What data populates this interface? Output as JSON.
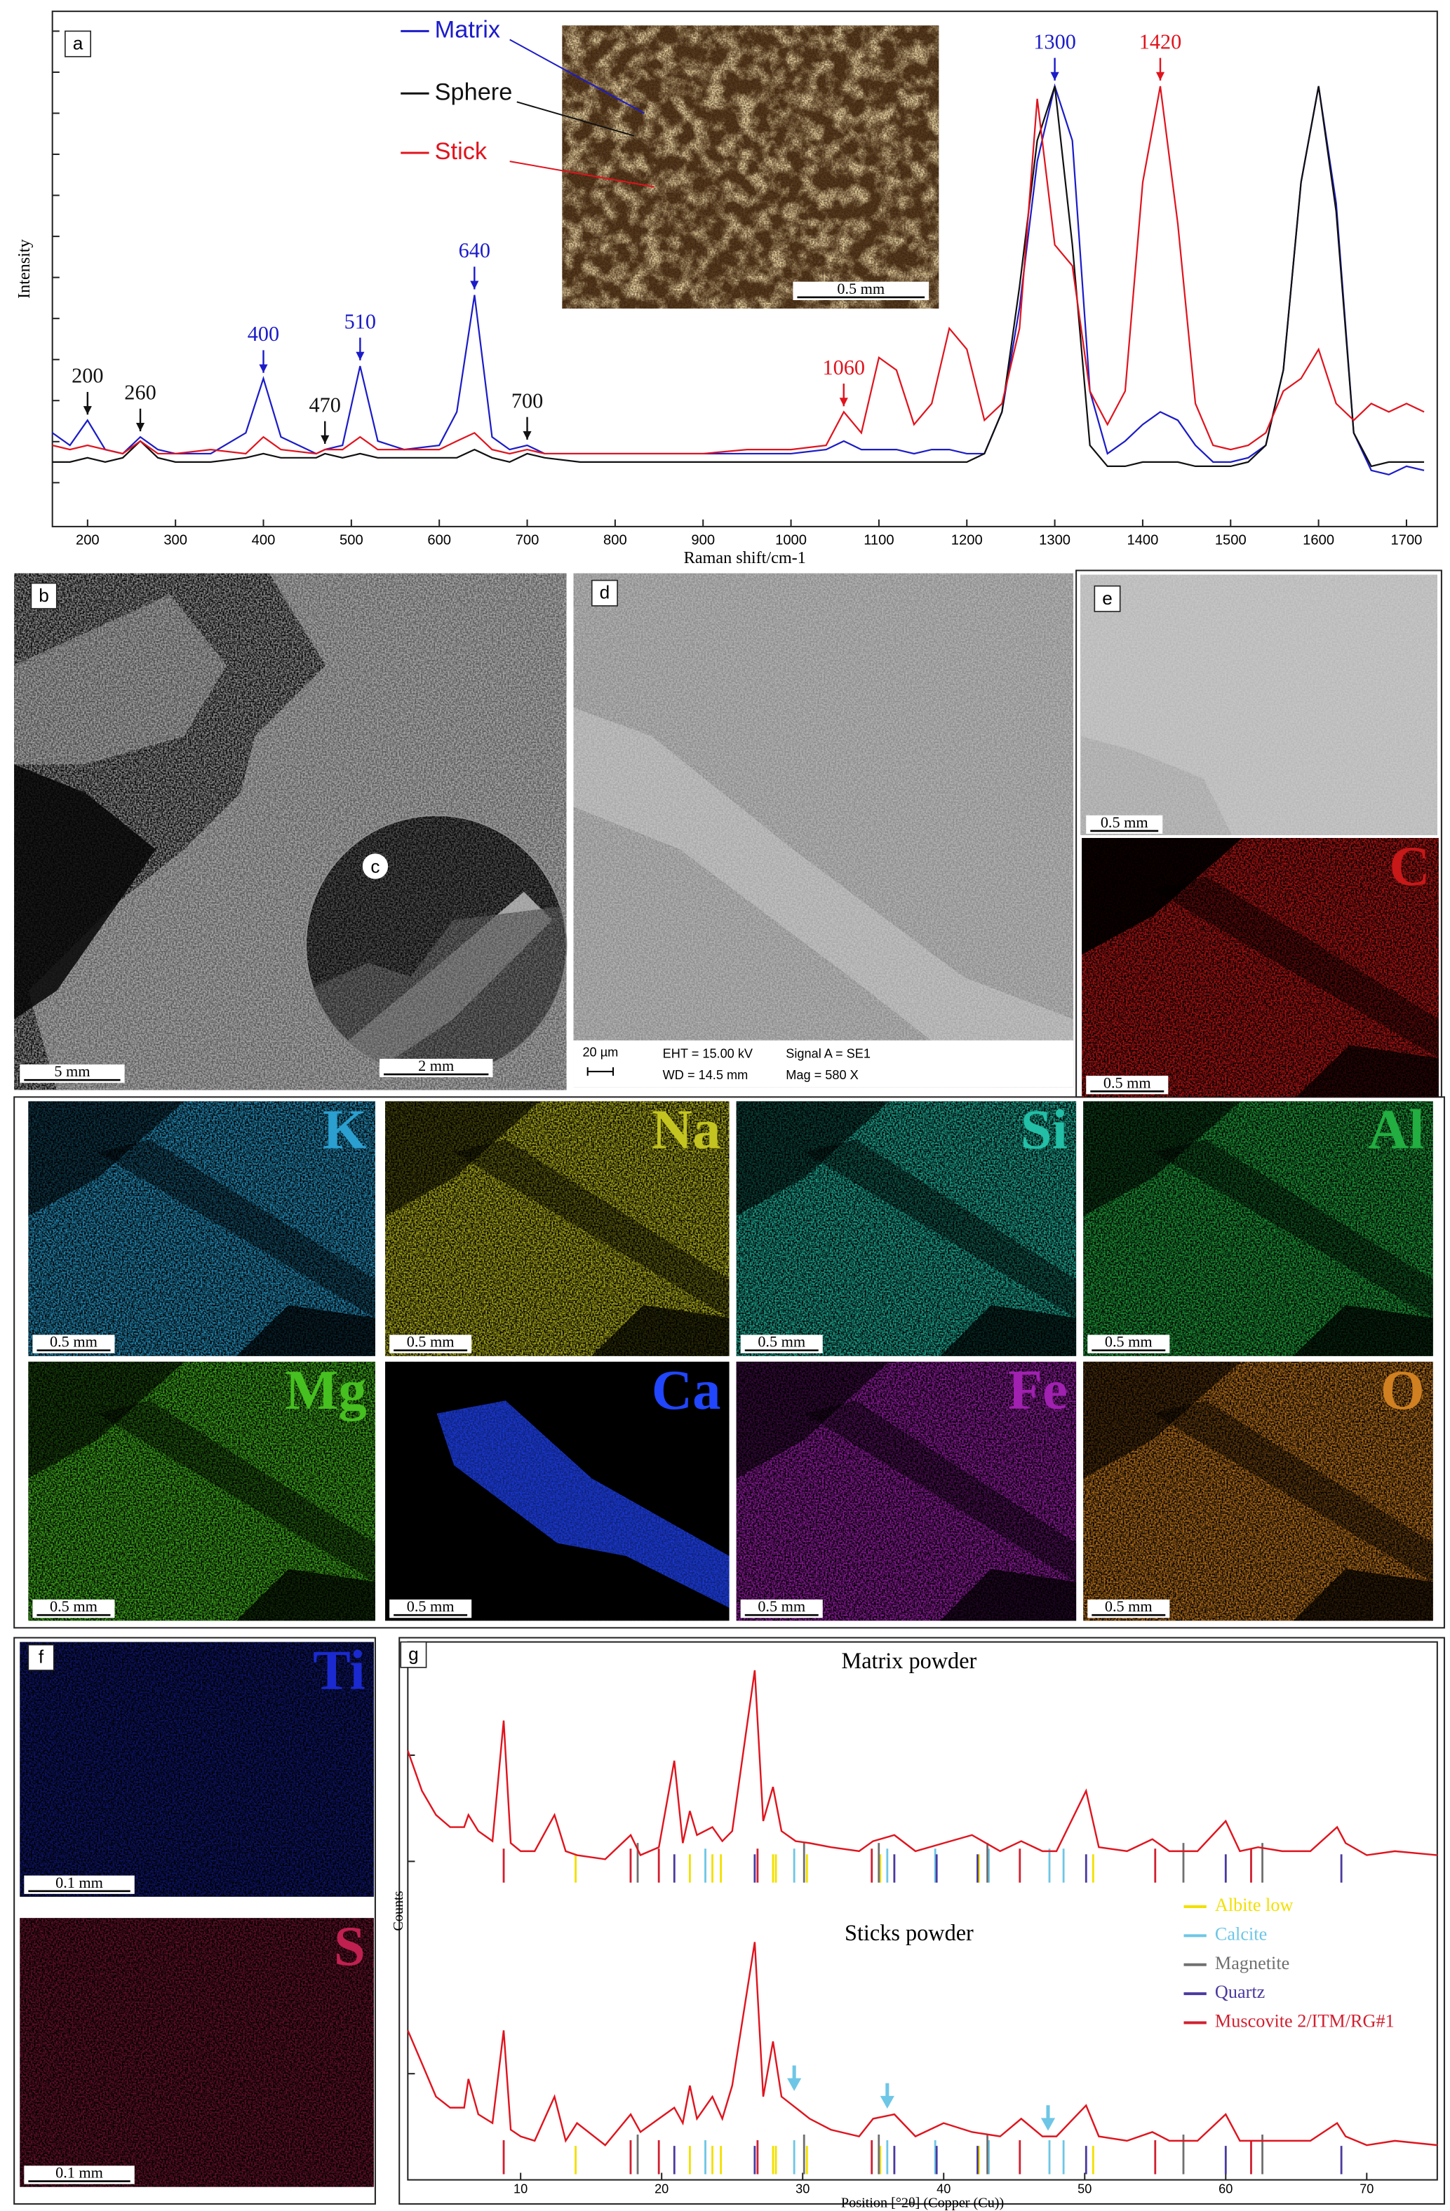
{
  "chart_data": [
    {
      "type": "line",
      "panel_label": "a",
      "xlabel": "Raman shift/cm-1",
      "ylabel": "Intensity",
      "xlim": [
        160,
        1735
      ],
      "ylim": [
        0,
        100
      ],
      "xticks": [
        200,
        300,
        400,
        500,
        600,
        700,
        800,
        900,
        1000,
        1100,
        1200,
        1300,
        1400,
        1500,
        1600,
        1700
      ],
      "x": [
        160,
        180,
        200,
        220,
        240,
        260,
        280,
        300,
        340,
        380,
        400,
        420,
        460,
        470,
        490,
        510,
        530,
        560,
        600,
        620,
        640,
        660,
        680,
        700,
        720,
        760,
        800,
        850,
        900,
        950,
        1000,
        1040,
        1060,
        1080,
        1100,
        1120,
        1140,
        1160,
        1180,
        1200,
        1220,
        1240,
        1260,
        1280,
        1300,
        1320,
        1340,
        1360,
        1380,
        1400,
        1420,
        1440,
        1460,
        1480,
        1500,
        1520,
        1540,
        1560,
        1580,
        1600,
        1620,
        1640,
        1660,
        1680,
        1700,
        1720
      ],
      "series": [
        {
          "name": "Matrix",
          "color": "#1c1cc8",
          "values": [
            15,
            12,
            18,
            11,
            10,
            14,
            11,
            10,
            10,
            15,
            28,
            14,
            10,
            11,
            12,
            31,
            13,
            11,
            12,
            20,
            48,
            14,
            11,
            12,
            10,
            10,
            10,
            10,
            10,
            10,
            10,
            11,
            13,
            11,
            11,
            11,
            10,
            11,
            11,
            10,
            10,
            20,
            45,
            80,
            98,
            85,
            25,
            10,
            13,
            17,
            20,
            18,
            12,
            8,
            8,
            9,
            12,
            30,
            75,
            98,
            70,
            15,
            6,
            5,
            7,
            6
          ]
        },
        {
          "name": "Sphere",
          "color": "#111111",
          "values": [
            8,
            8,
            9,
            8,
            9,
            13,
            9,
            8,
            8,
            9,
            10,
            9,
            9,
            10,
            9,
            10,
            9,
            9,
            9,
            9,
            11,
            9,
            8,
            10,
            9,
            8,
            8,
            8,
            8,
            8,
            8,
            8,
            8,
            8,
            8,
            8,
            8,
            8,
            8,
            8,
            10,
            20,
            50,
            85,
            98,
            60,
            12,
            7,
            7,
            8,
            8,
            8,
            7,
            7,
            7,
            8,
            12,
            30,
            75,
            98,
            68,
            15,
            7,
            8,
            8,
            8
          ]
        },
        {
          "name": "Stick",
          "color": "#e0141e",
          "values": [
            12,
            11,
            12,
            11,
            10,
            13,
            10,
            10,
            11,
            10,
            14,
            11,
            10,
            11,
            11,
            14,
            11,
            11,
            11,
            13,
            15,
            11,
            10,
            11,
            10,
            10,
            10,
            10,
            10,
            11,
            11,
            12,
            20,
            15,
            33,
            30,
            17,
            22,
            40,
            35,
            18,
            22,
            40,
            95,
            60,
            55,
            25,
            17,
            25,
            75,
            98,
            65,
            22,
            12,
            11,
            12,
            15,
            25,
            28,
            35,
            22,
            18,
            22,
            20,
            22,
            20
          ]
        }
      ],
      "annotations": [
        {
          "label": "200",
          "x": 200,
          "color": "#111111"
        },
        {
          "label": "260",
          "x": 260,
          "color": "#111111"
        },
        {
          "label": "400",
          "x": 400,
          "color": "#1c1cc8"
        },
        {
          "label": "470",
          "x": 470,
          "color": "#111111"
        },
        {
          "label": "510",
          "x": 510,
          "color": "#1c1cc8"
        },
        {
          "label": "640",
          "x": 640,
          "color": "#1c1cc8"
        },
        {
          "label": "700",
          "x": 700,
          "color": "#111111"
        },
        {
          "label": "1060",
          "x": 1060,
          "color": "#e0141e"
        },
        {
          "label": "1300",
          "x": 1300,
          "color": "#1c1cc8"
        },
        {
          "label": "1420",
          "x": 1420,
          "color": "#e0141e"
        }
      ],
      "inset_scale_bar": "0.5 mm"
    },
    {
      "type": "xrd",
      "panel_label": "g",
      "xlabel": "Position [°2θ] (Copper (Cu))",
      "ylabel": "Counts",
      "xlim": [
        2,
        75
      ],
      "ylim": [
        0,
        100
      ],
      "xticks": [
        10,
        20,
        30,
        40,
        50,
        60,
        70
      ],
      "patterns": [
        {
          "title": "Matrix powder",
          "color": "#e0141e",
          "x": [
            2,
            3,
            4,
            5,
            6,
            6.3,
            7,
            8,
            8.8,
            9.3,
            10,
            11,
            12.4,
            13.2,
            14,
            16,
            17.8,
            18.5,
            19.8,
            20.9,
            21.5,
            22,
            22.5,
            23.6,
            24.3,
            25,
            26.6,
            27.2,
            27.9,
            28.5,
            29.5,
            30.5,
            32,
            34,
            35,
            36.5,
            38,
            40,
            42,
            44,
            45.5,
            47,
            48,
            50.1,
            51,
            53,
            54.8,
            56,
            58,
            60,
            61,
            62.3,
            64,
            66,
            67.9,
            68.5,
            70,
            72,
            75
          ],
          "values": [
            60,
            40,
            28,
            22,
            22,
            28,
            20,
            15,
            75,
            14,
            10,
            10,
            28,
            10,
            8,
            6,
            18,
            8,
            12,
            55,
            14,
            30,
            18,
            22,
            15,
            20,
            100,
            25,
            42,
            20,
            15,
            14,
            12,
            10,
            15,
            18,
            10,
            14,
            18,
            10,
            15,
            10,
            10,
            40,
            12,
            10,
            16,
            10,
            10,
            25,
            10,
            12,
            10,
            10,
            22,
            14,
            8,
            10,
            8
          ]
        },
        {
          "title": "Sticks powder",
          "color": "#e0141e",
          "x": [
            2,
            3,
            4,
            5,
            6,
            6.3,
            7,
            8,
            8.8,
            9.3,
            10,
            11,
            12.4,
            13.2,
            14,
            16,
            17.8,
            18.5,
            19.8,
            20.9,
            21.5,
            22,
            22.5,
            23.6,
            24.3,
            25,
            26.6,
            27.2,
            27.9,
            28.5,
            29.5,
            30.5,
            32,
            34,
            35,
            36.5,
            38,
            40,
            42,
            44,
            45.5,
            47,
            48,
            50.1,
            51,
            53,
            54.8,
            56,
            58,
            60,
            61,
            62.3,
            64,
            66,
            67.9,
            68.5,
            70,
            72,
            75
          ],
          "values": [
            60,
            45,
            30,
            25,
            25,
            38,
            22,
            18,
            60,
            15,
            12,
            10,
            30,
            10,
            18,
            8,
            22,
            14,
            20,
            25,
            18,
            35,
            20,
            30,
            20,
            35,
            100,
            30,
            55,
            30,
            25,
            20,
            15,
            12,
            20,
            22,
            12,
            18,
            14,
            12,
            20,
            12,
            12,
            26,
            12,
            10,
            14,
            10,
            10,
            22,
            10,
            10,
            10,
            10,
            18,
            12,
            8,
            10,
            8
          ],
          "arrows": [
            29.4,
            36,
            47.4
          ]
        }
      ],
      "phases": [
        {
          "name": "Albite low",
          "color": "#f2e000",
          "positions": [
            13.9,
            22,
            23.6,
            24.2,
            27.9,
            28.1,
            30.3,
            35.5,
            42.5,
            50.6
          ]
        },
        {
          "name": "Calcite",
          "color": "#6ec6e6",
          "positions": [
            23.1,
            29.4,
            36,
            39.4,
            43.2,
            47.5,
            48.5
          ]
        },
        {
          "name": "Magnetite",
          "color": "#707070",
          "positions": [
            18.3,
            30.1,
            35.4,
            43.1,
            57,
            62.6
          ]
        },
        {
          "name": "Quartz",
          "color": "#4a3aa0",
          "positions": [
            20.9,
            26.6,
            36.5,
            39.5,
            42.4,
            50.1,
            60,
            68.2
          ]
        },
        {
          "name": "Muscovite 2/ITM/RG#1",
          "color": "#d02030",
          "positions": [
            8.8,
            17.8,
            19.8,
            26.8,
            34.9,
            45.4,
            55,
            61.8
          ]
        }
      ]
    }
  ],
  "panels": {
    "b": {
      "label": "b",
      "scale_bar": "5 mm"
    },
    "c": {
      "label": "c",
      "scale_bar": "2 mm"
    },
    "d": {
      "label": "d",
      "scale_bar": "20 µm",
      "info": [
        "EHT = 15.00 kV",
        "WD = 14.5 mm",
        "Signal A = SE1",
        "Mag = 580 X"
      ]
    },
    "e": {
      "label": "e",
      "scale_bar": "0.5 mm"
    },
    "f": {
      "label": "f"
    },
    "maps": [
      {
        "element": "C",
        "color": "#c81818",
        "scale_bar": "0.5 mm"
      },
      {
        "element": "K",
        "color": "#2a9fd0",
        "scale_bar": "0.5 mm"
      },
      {
        "element": "Na",
        "color": "#c4c420",
        "scale_bar": "0.5 mm"
      },
      {
        "element": "Si",
        "color": "#22bfa6",
        "scale_bar": "0.5 mm"
      },
      {
        "element": "Al",
        "color": "#22ae40",
        "scale_bar": "0.5 mm"
      },
      {
        "element": "Mg",
        "color": "#46c020",
        "scale_bar": "0.5 mm"
      },
      {
        "element": "Ca",
        "color": "#2046ff",
        "scale_bar": "0.5 mm"
      },
      {
        "element": "Fe",
        "color": "#a020b0",
        "scale_bar": "0.5 mm"
      },
      {
        "element": "O",
        "color": "#d08020",
        "scale_bar": "0.5 mm"
      },
      {
        "element": "Ti",
        "color": "#1a2ad0",
        "scale_bar": "0.1 mm"
      },
      {
        "element": "S",
        "color": "#c02050",
        "scale_bar": "0.1 mm"
      }
    ]
  }
}
